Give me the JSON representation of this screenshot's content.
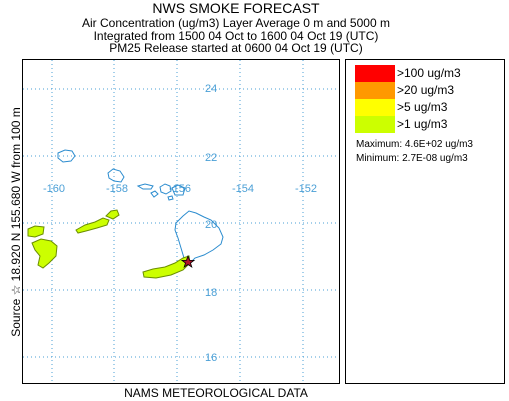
{
  "header": {
    "title": "NWS SMOKE FORECAST",
    "line1": "Air Concentration (ug/m3) Layer Average    0 m and  5000 m",
    "line2": "Integrated from 1500 04 Oct to 1600 04 Oct 19 (UTC)",
    "line3": "PM25 Release started at 0600 04 Oct 19 (UTC)"
  },
  "side_label": "Source ☆  18.920  N 155.680  W   from  100 m",
  "footer": "NAMS METEOROLOGICAL DATA",
  "map": {
    "lat_labels": [
      "24",
      "22",
      "20",
      "18",
      "16"
    ],
    "lon_labels": [
      "-160",
      "-158",
      "-156",
      "-154",
      "-152"
    ],
    "source": {
      "lat": 18.92,
      "lon": -155.68,
      "marker": "star-icon"
    },
    "plume_color": "#ccff00"
  },
  "legend": {
    "items": [
      {
        "label": ">100 ug/m3",
        "color": "#ff0000"
      },
      {
        "label": ">20 ug/m3",
        "color": "#ff9900"
      },
      {
        "label": ">5 ug/m3",
        "color": "#ffff00"
      },
      {
        "label": ">1 ug/m3",
        "color": "#ccff00"
      }
    ],
    "maximum": "Maximum: 4.6E+02 ug/m3",
    "minimum": "Minimum: 2.7E-08 ug/m3"
  }
}
